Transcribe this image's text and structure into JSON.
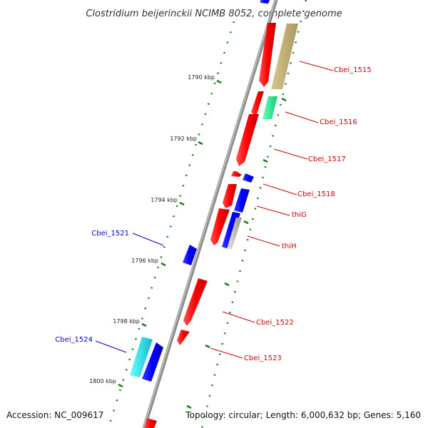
{
  "title": "Clostridium beijerinckii NCIMB 8052, complete genome",
  "footer": {
    "accession": "Accession: NC_009617",
    "topology": "Topology: circular; Length: 6,000,632 bp; Genes: 5,160"
  },
  "colors": {
    "backbone": "#8a8a8a",
    "kbp_tick": "#1a7a1a",
    "forward_gene": "#ff0000",
    "reverse_gene": "#0000ff",
    "label_forward": "#cc0000",
    "label_reverse": "#0000cc",
    "cbei_1515_box": "#c8b878",
    "cbei_1516_box": "#33ee99",
    "cbei_1524_box": "#22dddd",
    "thiH_box": "#b0b0b0"
  },
  "scale_labels": [
    "1790 kbp",
    "1792 kbp",
    "1794 kbp",
    "1796 kbp",
    "1798 kbp",
    "1800 kbp"
  ],
  "gene_labels": {
    "cbei_1515": "Cbei_1515",
    "cbei_1516": "Cbei_1516",
    "cbei_1517": "Cbei_1517",
    "cbei_1518": "Cbei_1518",
    "thiG": "thiG",
    "thiH": "thiH",
    "cbei_1521": "Cbei_1521",
    "cbei_1522": "Cbei_1522",
    "cbei_1523": "Cbei_1523",
    "cbei_1524": "Cbei_1524"
  }
}
